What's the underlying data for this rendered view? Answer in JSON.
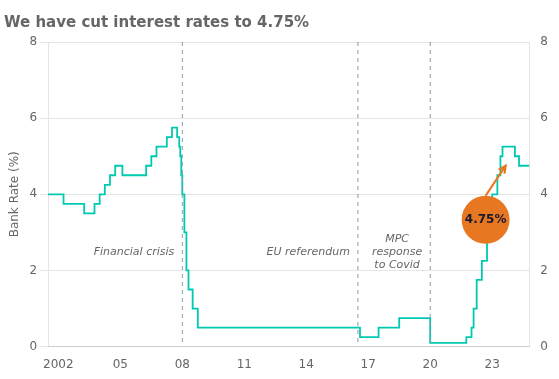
{
  "chart_data": {
    "type": "line",
    "title": "We have cut interest rates to 4.75%",
    "ylabel": "Bank Rate (%)",
    "color": "#00c9b1",
    "line_style": "step",
    "grid": "y",
    "x": [
      2001.5,
      2002.0,
      2002.25,
      2002.75,
      2003.0,
      2003.25,
      2003.5,
      2003.75,
      2004.0,
      2004.25,
      2004.5,
      2004.75,
      2005.0,
      2005.1,
      2005.5,
      2006.0,
      2006.25,
      2006.5,
      2006.75,
      2007.0,
      2007.25,
      2007.5,
      2007.65,
      2007.75,
      2007.85,
      2007.9,
      2007.95,
      2008.0,
      2008.1,
      2008.2,
      2008.3,
      2008.5,
      2008.75,
      2009.5,
      2016.25,
      2016.5,
      2016.6,
      2017.0,
      2017.5,
      2018.0,
      2018.5,
      2019.0,
      2019.8,
      2020.0,
      2020.5,
      2021.0,
      2021.5,
      2021.75,
      2022.0,
      2022.1,
      2022.25,
      2022.5,
      2022.75,
      2023.0,
      2023.25,
      2023.4,
      2023.5,
      2023.6,
      2023.7,
      2024.0,
      2024.1,
      2024.3,
      2024.8
    ],
    "values": [
      4.0,
      4.0,
      3.75,
      3.75,
      3.75,
      3.5,
      3.5,
      3.75,
      4.0,
      4.25,
      4.5,
      4.75,
      4.75,
      4.5,
      4.5,
      4.5,
      4.75,
      5.0,
      5.25,
      5.25,
      5.5,
      5.75,
      5.75,
      5.5,
      5.25,
      5.0,
      4.5,
      4.0,
      3.0,
      2.0,
      1.5,
      1.0,
      0.5,
      0.5,
      0.5,
      0.5,
      0.25,
      0.25,
      0.5,
      0.5,
      0.75,
      0.75,
      0.75,
      0.1,
      0.1,
      0.1,
      0.1,
      0.25,
      0.5,
      1.0,
      1.75,
      2.25,
      3.0,
      4.0,
      4.5,
      5.0,
      5.25,
      5.25,
      5.25,
      5.25,
      5.0,
      4.75,
      4.75
    ],
    "xlim": [
      2001.5,
      2024.8
    ],
    "xticks": [
      2002,
      {
        "value": 2005,
        "label": "05"
      },
      {
        "value": 2008,
        "label": "08"
      },
      {
        "value": 2011,
        "label": "11"
      },
      {
        "value": 2014,
        "label": "14"
      },
      {
        "value": 2017,
        "label": "17"
      },
      {
        "value": 2020,
        "label": "20"
      },
      {
        "value": 2023,
        "label": "23"
      }
    ],
    "ylim": [
      0,
      8
    ],
    "yticks": [
      0,
      2,
      4,
      6,
      8
    ],
    "y2lim": [
      0,
      8
    ],
    "y2ticks": [
      0,
      2,
      4,
      6,
      8
    ],
    "annotations": [
      {
        "type": "vline",
        "x": 2008,
        "text": "Financial crisis"
      },
      {
        "type": "vline",
        "x": 2016.5,
        "text": "EU referendum"
      },
      {
        "type": "vline",
        "x": 2020,
        "text": "MPC\nresponse\nto Covid"
      },
      {
        "type": "callout",
        "x": 2023.65,
        "y": 4.75,
        "text": "4.75%",
        "color": "#e87722"
      }
    ]
  }
}
